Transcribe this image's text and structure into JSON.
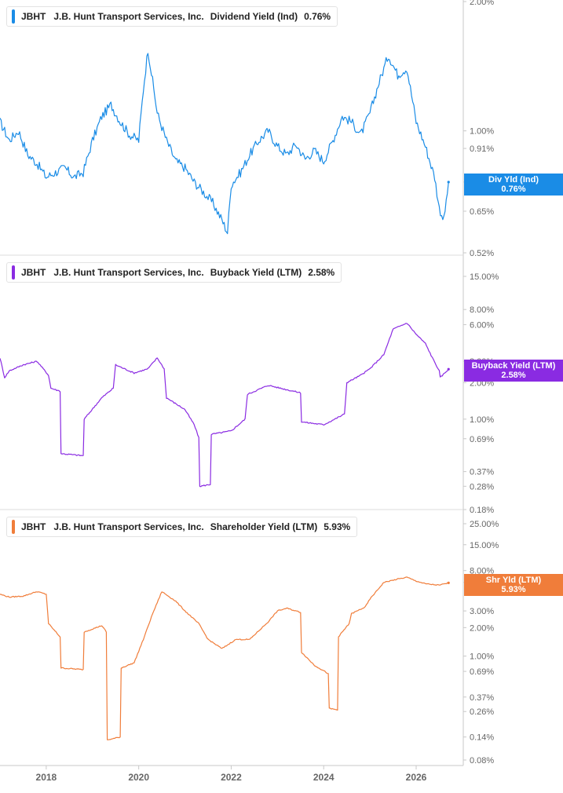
{
  "colors": {
    "dividend": "#1a8ce6",
    "buyback": "#8a2be2",
    "shareholder": "#f07d3a",
    "axis": "#c8c8c8",
    "tick": "#666666"
  },
  "x_axis_labels": [
    "2018",
    "2020",
    "2022",
    "2024",
    "2026"
  ],
  "panels": [
    {
      "ticker": "JBHT",
      "company": "J.B. Hunt Transport Services, Inc.",
      "metric": "Dividend Yield (Ind)",
      "value": "0.76%",
      "badge_title": "Div Yld (Ind)",
      "badge_value": "0.76%",
      "tick_labels": [
        "2.00%",
        "1.00%",
        "0.91%",
        "0.76%",
        "0.65%",
        "0.52%"
      ]
    },
    {
      "ticker": "JBHT",
      "company": "J.B. Hunt Transport Services, Inc.",
      "metric": "Buyback Yield (LTM)",
      "value": "2.58%",
      "badge_title": "Buyback Yield (LTM)",
      "badge_value": "2.58%",
      "tick_labels": [
        "15.00%",
        "8.00%",
        "6.00%",
        "3.00%",
        "2.00%",
        "1.00%",
        "0.69%",
        "0.37%",
        "0.28%",
        "0.18%"
      ]
    },
    {
      "ticker": "JBHT",
      "company": "J.B. Hunt Transport Services, Inc.",
      "metric": "Shareholder Yield (LTM)",
      "value": "5.93%",
      "badge_title": "Shr Yld (LTM)",
      "badge_value": "5.93%",
      "tick_labels": [
        "25.00%",
        "15.00%",
        "8.00%",
        "6.00%",
        "3.00%",
        "2.00%",
        "1.00%",
        "0.69%",
        "0.37%",
        "0.26%",
        "0.14%",
        "0.08%"
      ]
    }
  ],
  "chart_data": [
    {
      "type": "line",
      "name": "Dividend Yield (Ind)",
      "scale": "log",
      "ylim": [
        0.52,
        2.0
      ],
      "yticks": [
        2.0,
        1.0,
        0.91,
        0.76,
        0.65,
        0.52
      ],
      "xlim": [
        2017.0,
        2026.8
      ],
      "x": [
        2017.0,
        2017.2,
        2017.4,
        2017.6,
        2017.8,
        2018.0,
        2018.2,
        2018.4,
        2018.6,
        2018.8,
        2019.0,
        2019.2,
        2019.4,
        2019.6,
        2019.8,
        2020.0,
        2020.1,
        2020.2,
        2020.4,
        2020.6,
        2020.8,
        2021.0,
        2021.2,
        2021.4,
        2021.6,
        2021.8,
        2021.92,
        2022.0,
        2022.2,
        2022.4,
        2022.6,
        2022.8,
        2023.0,
        2023.2,
        2023.4,
        2023.6,
        2023.8,
        2024.0,
        2024.2,
        2024.4,
        2024.6,
        2024.8,
        2025.0,
        2025.2,
        2025.4,
        2025.6,
        2025.8,
        2026.0,
        2026.2,
        2026.4,
        2026.5,
        2026.6,
        2026.7
      ],
      "values": [
        1.05,
        0.95,
        1.0,
        0.88,
        0.84,
        0.78,
        0.8,
        0.82,
        0.78,
        0.8,
        0.95,
        1.08,
        1.15,
        1.05,
        0.98,
        0.95,
        1.25,
        1.55,
        1.1,
        0.95,
        0.85,
        0.82,
        0.76,
        0.72,
        0.68,
        0.62,
        0.58,
        0.75,
        0.8,
        0.88,
        0.95,
        1.0,
        0.92,
        0.88,
        0.93,
        0.86,
        0.9,
        0.85,
        0.95,
        1.08,
        1.05,
        0.98,
        1.1,
        1.3,
        1.5,
        1.35,
        1.4,
        1.05,
        0.92,
        0.78,
        0.66,
        0.62,
        0.76
      ]
    },
    {
      "type": "line",
      "name": "Buyback Yield (LTM)",
      "scale": "log",
      "ylim": [
        0.18,
        15.0
      ],
      "yticks": [
        15.0,
        8.0,
        6.0,
        3.0,
        2.0,
        1.0,
        0.69,
        0.37,
        0.28,
        0.18
      ],
      "xlim": [
        2017.0,
        2026.8
      ],
      "x": [
        2017.0,
        2017.1,
        2017.2,
        2017.5,
        2017.8,
        2018.05,
        2018.1,
        2018.3,
        2018.32,
        2018.8,
        2018.82,
        2019.2,
        2019.45,
        2019.5,
        2019.9,
        2020.2,
        2020.4,
        2020.55,
        2020.6,
        2021.0,
        2021.2,
        2021.3,
        2021.32,
        2021.55,
        2021.57,
        2022.0,
        2022.3,
        2022.35,
        2022.8,
        2023.2,
        2023.5,
        2023.52,
        2024.0,
        2024.45,
        2024.5,
        2024.8,
        2025.0,
        2025.3,
        2025.5,
        2025.8,
        2026.0,
        2026.2,
        2026.35,
        2026.5,
        2026.52,
        2026.7
      ],
      "values": [
        3.2,
        2.2,
        2.5,
        2.8,
        3.0,
        2.3,
        1.8,
        1.7,
        0.52,
        0.5,
        1.0,
        1.5,
        1.8,
        2.8,
        2.4,
        2.6,
        3.2,
        2.6,
        1.5,
        1.2,
        0.9,
        0.7,
        0.28,
        0.29,
        0.75,
        0.8,
        1.0,
        1.6,
        1.9,
        1.75,
        1.65,
        0.95,
        0.9,
        1.1,
        2.0,
        2.3,
        2.6,
        3.4,
        5.5,
        6.2,
        5.0,
        4.2,
        3.2,
        2.5,
        2.2,
        2.58
      ]
    },
    {
      "type": "line",
      "name": "Shareholder Yield (LTM)",
      "scale": "log",
      "ylim": [
        0.08,
        25.0
      ],
      "yticks": [
        25.0,
        15.0,
        8.0,
        6.0,
        3.0,
        2.0,
        1.0,
        0.69,
        0.37,
        0.26,
        0.14,
        0.08
      ],
      "xlim": [
        2017.0,
        2026.8
      ],
      "x": [
        2017.0,
        2017.2,
        2017.5,
        2017.8,
        2018.0,
        2018.05,
        2018.3,
        2018.32,
        2018.8,
        2018.82,
        2019.2,
        2019.3,
        2019.32,
        2019.6,
        2019.62,
        2019.9,
        2020.1,
        2020.3,
        2020.5,
        2020.8,
        2021.0,
        2021.3,
        2021.5,
        2021.8,
        2022.1,
        2022.4,
        2022.8,
        2023.0,
        2023.2,
        2023.5,
        2023.52,
        2023.8,
        2024.0,
        2024.1,
        2024.12,
        2024.3,
        2024.32,
        2024.55,
        2024.6,
        2024.9,
        2025.0,
        2025.3,
        2025.6,
        2025.8,
        2026.0,
        2026.2,
        2026.5,
        2026.7
      ],
      "values": [
        4.5,
        4.2,
        4.3,
        4.8,
        4.5,
        2.2,
        1.6,
        0.75,
        0.72,
        1.8,
        2.1,
        1.8,
        0.13,
        0.14,
        0.75,
        0.85,
        1.5,
        2.8,
        4.8,
        3.8,
        3.0,
        2.2,
        1.5,
        1.2,
        1.5,
        1.5,
        2.3,
        3.0,
        3.2,
        2.9,
        1.1,
        0.8,
        0.7,
        0.65,
        0.28,
        0.27,
        1.6,
        2.2,
        2.8,
        3.3,
        4.0,
        6.0,
        6.5,
        6.8,
        6.2,
        5.8,
        5.6,
        5.93
      ]
    }
  ]
}
